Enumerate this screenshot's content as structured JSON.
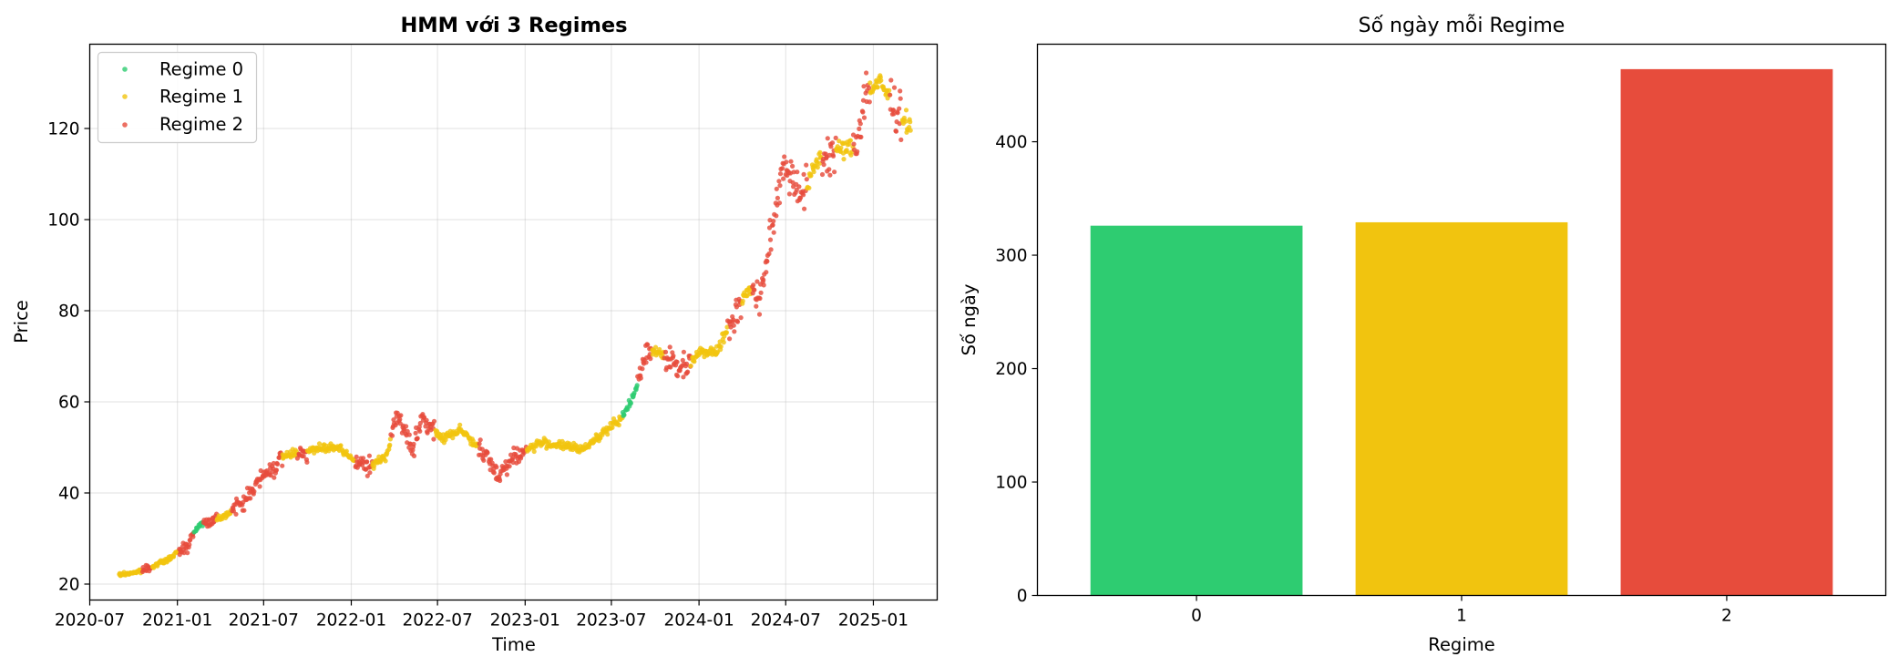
{
  "chart_data": [
    {
      "type": "scatter",
      "title": "HMM với 3 Regimes",
      "xlabel": "Time",
      "ylabel": "Price",
      "xlim": [
        "2020-07-01",
        "2025-05-15"
      ],
      "ylim": [
        16.5,
        138.5
      ],
      "x_ticks": [
        "2020-07",
        "2021-01",
        "2021-07",
        "2022-01",
        "2022-07",
        "2023-01",
        "2023-07",
        "2024-01",
        "2024-07",
        "2025-01"
      ],
      "y_ticks": [
        20,
        40,
        60,
        80,
        100,
        120
      ],
      "grid": true,
      "legend_position": "upper-left",
      "series": [
        {
          "name": "Regime 0",
          "color": "#2ecc71"
        },
        {
          "name": "Regime 1",
          "color": "#f1c40f"
        },
        {
          "name": "Regime 2",
          "color": "#e74c3c"
        }
      ],
      "price_path": [
        [
          "2020-09-01",
          22.0
        ],
        [
          "2020-10-15",
          22.8
        ],
        [
          "2020-12-15",
          25.5
        ],
        [
          "2021-01-25",
          29.0
        ],
        [
          "2021-02-15",
          33.0
        ],
        [
          "2021-04-10",
          35.0
        ],
        [
          "2021-05-25",
          38.5
        ],
        [
          "2021-06-15",
          42.0
        ],
        [
          "2021-07-20",
          45.5
        ],
        [
          "2021-08-20",
          48.5
        ],
        [
          "2021-10-15",
          49.5
        ],
        [
          "2021-12-01",
          50.0
        ],
        [
          "2022-01-10",
          47.0
        ],
        [
          "2022-02-05",
          45.5
        ],
        [
          "2022-03-15",
          48.0
        ],
        [
          "2022-04-05",
          57.0
        ],
        [
          "2022-05-10",
          50.0
        ],
        [
          "2022-06-01",
          56.0
        ],
        [
          "2022-07-10",
          52.0
        ],
        [
          "2022-08-20",
          54.0
        ],
        [
          "2022-10-10",
          48.0
        ],
        [
          "2022-11-05",
          44.0
        ],
        [
          "2022-12-10",
          48.0
        ],
        [
          "2023-02-01",
          51.0
        ],
        [
          "2023-03-15",
          50.5
        ],
        [
          "2023-05-01",
          49.5
        ],
        [
          "2023-06-10",
          53.0
        ],
        [
          "2023-07-20",
          56.0
        ],
        [
          "2023-08-20",
          62.0
        ],
        [
          "2023-09-15",
          72.0
        ],
        [
          "2023-10-25",
          70.0
        ],
        [
          "2023-11-20",
          67.0
        ],
        [
          "2024-01-05",
          71.0
        ],
        [
          "2024-02-10",
          71.5
        ],
        [
          "2024-03-20",
          80.0
        ],
        [
          "2024-04-15",
          85.0
        ],
        [
          "2024-05-05",
          82.0
        ],
        [
          "2024-06-01",
          96.0
        ],
        [
          "2024-06-25",
          113.0
        ],
        [
          "2024-07-20",
          108.0
        ],
        [
          "2024-08-10",
          106.0
        ],
        [
          "2024-09-05",
          113.0
        ],
        [
          "2024-10-10",
          115.0
        ],
        [
          "2024-11-25",
          116.0
        ],
        [
          "2024-12-15",
          128.0
        ],
        [
          "2025-01-15",
          130.0
        ],
        [
          "2025-02-15",
          125.0
        ],
        [
          "2025-03-20",
          120.0
        ]
      ],
      "regime_spans": [
        [
          "2020-09-01",
          "2020-10-20",
          "Regime 1"
        ],
        [
          "2020-10-20",
          "2020-11-10",
          "Regime 2"
        ],
        [
          "2020-11-10",
          "2021-01-05",
          "Regime 1"
        ],
        [
          "2021-01-05",
          "2021-02-05",
          "Regime 2"
        ],
        [
          "2021-02-05",
          "2021-02-25",
          "Regime 0"
        ],
        [
          "2021-02-25",
          "2021-03-25",
          "Regime 2"
        ],
        [
          "2021-03-25",
          "2021-04-25",
          "Regime 1"
        ],
        [
          "2021-04-25",
          "2021-08-10",
          "Regime 2"
        ],
        [
          "2021-08-10",
          "2021-09-10",
          "Regime 1"
        ],
        [
          "2021-09-10",
          "2021-10-01",
          "Regime 2"
        ],
        [
          "2021-10-01",
          "2022-01-10",
          "Regime 1"
        ],
        [
          "2022-01-10",
          "2022-02-15",
          "Regime 2"
        ],
        [
          "2022-02-15",
          "2022-03-25",
          "Regime 1"
        ],
        [
          "2022-03-25",
          "2022-06-25",
          "Regime 2"
        ],
        [
          "2022-06-25",
          "2022-09-25",
          "Regime 1"
        ],
        [
          "2022-09-25",
          "2023-01-05",
          "Regime 2"
        ],
        [
          "2023-01-05",
          "2023-07-25",
          "Regime 1"
        ],
        [
          "2023-07-25",
          "2023-08-25",
          "Regime 0"
        ],
        [
          "2023-08-25",
          "2023-09-25",
          "Regime 2"
        ],
        [
          "2023-09-25",
          "2023-10-20",
          "Regime 1"
        ],
        [
          "2023-10-20",
          "2023-12-15",
          "Regime 2"
        ],
        [
          "2023-12-15",
          "2024-03-01",
          "Regime 1"
        ],
        [
          "2024-03-01",
          "2024-04-01",
          "Regime 2"
        ],
        [
          "2024-04-01",
          "2024-04-20",
          "Regime 1"
        ],
        [
          "2024-04-20",
          "2024-08-15",
          "Regime 2"
        ],
        [
          "2024-08-15",
          "2024-09-15",
          "Regime 1"
        ],
        [
          "2024-09-15",
          "2024-10-15",
          "Regime 2"
        ],
        [
          "2024-10-15",
          "2024-11-20",
          "Regime 1"
        ],
        [
          "2024-11-20",
          "2024-12-25",
          "Regime 2"
        ],
        [
          "2024-12-25",
          "2025-02-05",
          "Regime 1"
        ],
        [
          "2025-02-05",
          "2025-03-01",
          "Regime 2"
        ],
        [
          "2025-03-01",
          "2025-03-25",
          "Regime 1"
        ]
      ]
    },
    {
      "type": "bar",
      "title": "Số ngày mỗi Regime",
      "xlabel": "Regime",
      "ylabel": "Số ngày",
      "categories": [
        "0",
        "1",
        "2"
      ],
      "values": [
        326,
        329,
        464
      ],
      "colors": [
        "#2ecc71",
        "#f1c40f",
        "#e74c3c"
      ],
      "ylim": [
        0,
        486
      ],
      "y_ticks": [
        0,
        100,
        200,
        300,
        400
      ],
      "grid": false
    }
  ]
}
